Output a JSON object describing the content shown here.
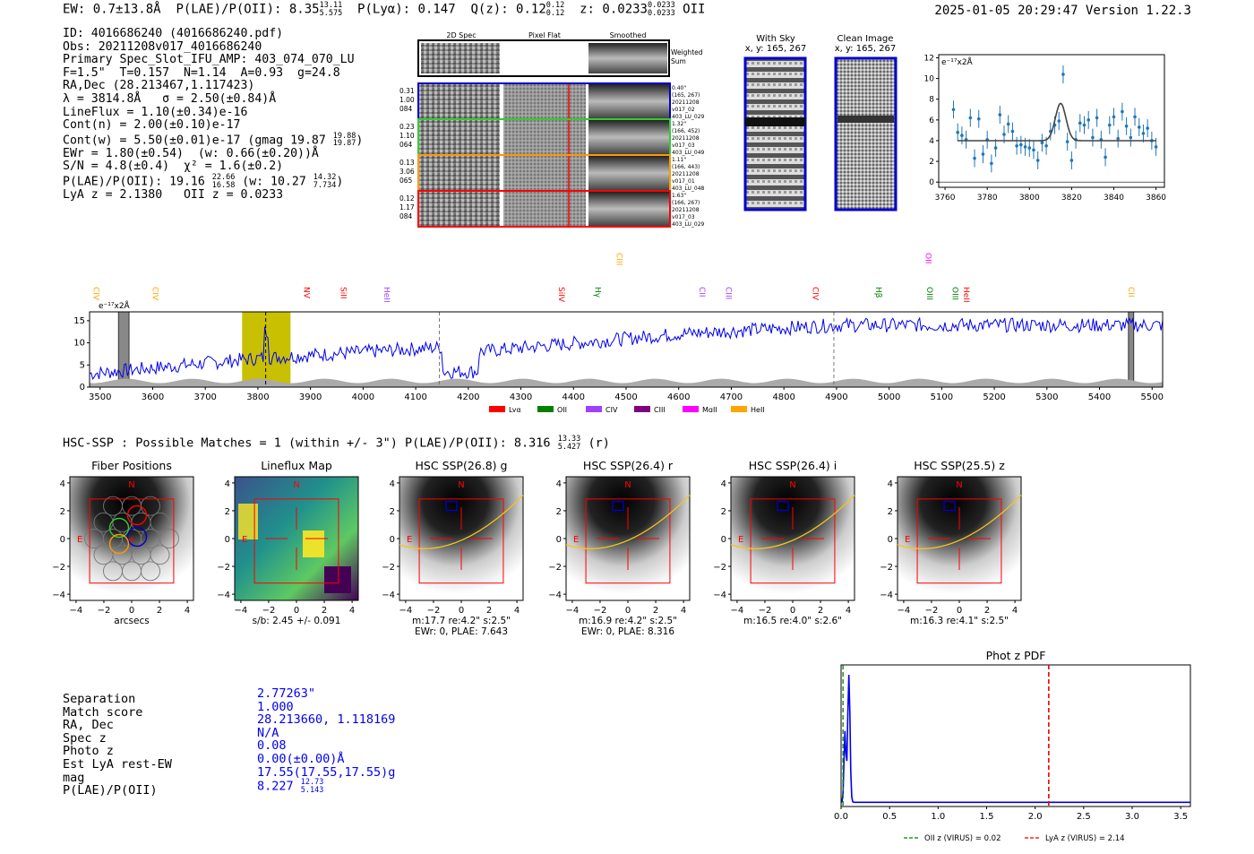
{
  "header": {
    "ew": "EW: 0.7±13.8Å",
    "plae_label": "P(LAE)/P(OII): 8.35",
    "plae_hi": "13.11",
    "plae_lo": "5.575",
    "plya": "P(Lyα): 0.147",
    "qz_label": "Q(z): 0.12",
    "qz_hi": "0.12",
    "qz_lo": "0.12",
    "z_label": "z: 0.0233",
    "z_hi": "0.0233",
    "z_lo": "0.0233",
    "z_line": "OII",
    "datetime": "2025-01-05 20:29:47",
    "version": "Version 1.22.3"
  },
  "info": {
    "id": "ID: 4016686240 (4016686240.pdf)",
    "obs": "Obs: 20211208v017_4016686240",
    "primary": "Primary Spec_Slot_IFU_AMP: 403_074_070_LU",
    "fline": "F=1.5\"  T=0.157  N=1.14  A=0.93  g=24.8",
    "radec": "RA,Dec (28.213467,1.117423)",
    "lambda": "λ = 3814.8Å   σ = 2.50(±0.84)Å",
    "lineflux": "LineFlux = 1.10(±0.34)e-16",
    "contn": "Cont(n) = 2.00(±0.10)e-17",
    "contw": "Cont(w) = 5.50(±0.01)e-17 (gmag 19.87",
    "contw_hi": "19.88",
    "contw_lo": "19.87",
    "ewr": "EWr = 1.80(±0.54)  (w: 0.66(±0.20))Å",
    "sn": "S/N = 4.8(±0.4)  χ² = 1.6(±0.2)",
    "plae": "P(LAE)/P(OII): 19.16",
    "plae_hi": "22.66",
    "plae_lo": "16.58",
    "plae_w": "(w: 10.27",
    "plae_w_hi": "14.32",
    "plae_w_lo": "7.734",
    "lya": "LyA z = 2.1380   OII z = 0.0233"
  },
  "cutouts": {
    "col_2d": "2D Spec",
    "col_flat": "Pixel Flat",
    "col_smooth": "Smoothed",
    "weighted": "Weighted",
    "sum": "Sum",
    "rows": [
      {
        "a": "0.31",
        "b": "1.00",
        "c": "084",
        "d1": "0.40\"",
        "d2": "(165, 267)",
        "d3": "20211208",
        "d4": "v017_02",
        "d5": "403_LU_029",
        "color": "#0000cc"
      },
      {
        "a": "0.23",
        "b": "1.10",
        "c": "064",
        "d1": "1.32\"",
        "d2": "(166, 452)",
        "d3": "20211208",
        "d4": "v017_03",
        "d5": "403_LU_049",
        "color": "#33cc33"
      },
      {
        "a": "0.13",
        "b": "3.06",
        "c": "065",
        "d1": "1.11\"",
        "d2": "(166, 443)",
        "d3": "20211208",
        "d4": "v017_01",
        "d5": "403_LU_048",
        "color": "#ff9900"
      },
      {
        "a": "0.12",
        "b": "1.17",
        "c": "084",
        "d1": "1.63\"",
        "d2": "(166, 267)",
        "d3": "20211208",
        "d4": "v017_03",
        "d5": "403_LU_029",
        "color": "#ff0000"
      }
    ],
    "with_sky": "With Sky",
    "with_sky_xy": "x, y: 165, 267",
    "clean": "Clean Image",
    "clean_xy": "x, y: 165, 267"
  },
  "spec_zoom": {
    "unit": "e⁻¹⁷x2Å",
    "xticks": [
      "3760",
      "3780",
      "3800",
      "3820",
      "3840",
      "3860"
    ],
    "yticks": [
      "0",
      "2",
      "4",
      "6",
      "8",
      "10",
      "12"
    ],
    "xlim": [
      3757,
      3864
    ],
    "ylim": [
      -0.5,
      12.3
    ],
    "continuum": 4.0,
    "gauss_center": 3814.8,
    "gauss_sigma": 2.5,
    "gauss_amp": 3.6,
    "points": [
      [
        3764,
        7.0
      ],
      [
        3766,
        4.8
      ],
      [
        3768,
        4.5
      ],
      [
        3770,
        4.1
      ],
      [
        3772,
        6.2
      ],
      [
        3774,
        2.3
      ],
      [
        3776,
        6.1
      ],
      [
        3778,
        2.7
      ],
      [
        3780,
        4.1
      ],
      [
        3782,
        1.8
      ],
      [
        3784,
        3.3
      ],
      [
        3786,
        6.5
      ],
      [
        3788,
        4.6
      ],
      [
        3790,
        5.6
      ],
      [
        3792,
        4.9
      ],
      [
        3794,
        3.5
      ],
      [
        3796,
        3.6
      ],
      [
        3798,
        3.4
      ],
      [
        3800,
        3.3
      ],
      [
        3802,
        3.1
      ],
      [
        3804,
        2.1
      ],
      [
        3806,
        3.8
      ],
      [
        3808,
        3.5
      ],
      [
        3810,
        4.9
      ],
      [
        3812,
        5.5
      ],
      [
        3814,
        5.9
      ],
      [
        3816,
        10.4
      ],
      [
        3818,
        3.9
      ],
      [
        3820,
        2.1
      ],
      [
        3822,
        4.1
      ],
      [
        3824,
        5.7
      ],
      [
        3826,
        5.5
      ],
      [
        3828,
        6.0
      ],
      [
        3830,
        4.3
      ],
      [
        3832,
        6.2
      ],
      [
        3834,
        4.1
      ],
      [
        3836,
        2.4
      ],
      [
        3838,
        5.5
      ],
      [
        3840,
        6.3
      ],
      [
        3842,
        4.2
      ],
      [
        3844,
        6.8
      ],
      [
        3846,
        5.4
      ],
      [
        3848,
        4.3
      ],
      [
        3850,
        6.3
      ],
      [
        3852,
        5.3
      ],
      [
        3854,
        4.7
      ],
      [
        3856,
        5.2
      ],
      [
        3858,
        4.0
      ],
      [
        3860,
        3.4
      ]
    ]
  },
  "full_spec": {
    "unit": "e⁻¹⁷x2Å",
    "xlim": [
      3480,
      5520
    ],
    "ylim": [
      0,
      17
    ],
    "xticks": [
      "3500",
      "3600",
      "3700",
      "3800",
      "3900",
      "4000",
      "4100",
      "4200",
      "4300",
      "4400",
      "4500",
      "4600",
      "4700",
      "4800",
      "4900",
      "5000",
      "5100",
      "5200",
      "5300",
      "5400",
      "5500"
    ],
    "yticks": [
      "0",
      "5",
      "10",
      "15"
    ],
    "lines": [
      {
        "name": "CIV",
        "wave": 3488,
        "color": "#ffa500",
        "row": 1
      },
      {
        "name": "CIV",
        "wave": 3600,
        "color": "#ffa500",
        "row": 1
      },
      {
        "name": "NV",
        "wave": 3888,
        "color": "#ff0000",
        "row": 1
      },
      {
        "name": "SiII",
        "wave": 3958,
        "color": "#ff0000",
        "row": 1
      },
      {
        "name": "HeII",
        "wave": 4040,
        "color": "#a040ff",
        "row": 1
      },
      {
        "name": "SiIV",
        "wave": 4372,
        "color": "#ff0000",
        "row": 1
      },
      {
        "name": "CIII",
        "wave": 4482,
        "color": "#ffa500",
        "row": 0
      },
      {
        "name": "Hγ",
        "wave": 4441,
        "color": "#008000",
        "row": 1
      },
      {
        "name": "CII",
        "wave": 4640,
        "color": "#a040ff",
        "row": 1
      },
      {
        "name": "CIII",
        "wave": 4690,
        "color": "#a040ff",
        "row": 1
      },
      {
        "name": "CIV",
        "wave": 4855,
        "color": "#ff0000",
        "row": 1
      },
      {
        "name": "Hβ",
        "wave": 4975,
        "color": "#008000",
        "row": 1
      },
      {
        "name": "OII",
        "wave": 5070,
        "color": "#ff00ff",
        "row": 0
      },
      {
        "name": "OIII",
        "wave": 5072,
        "color": "#008000",
        "row": 1
      },
      {
        "name": "OIII",
        "wave": 5121,
        "color": "#008000",
        "row": 1
      },
      {
        "name": "HeII",
        "wave": 5142,
        "color": "#ff0000",
        "row": 1
      },
      {
        "name": "CII",
        "wave": 5455,
        "color": "#ffa500",
        "row": 1
      }
    ],
    "legend": [
      {
        "name": "Lyα",
        "color": "#ff0000"
      },
      {
        "name": "OII",
        "color": "#008000"
      },
      {
        "name": "CIV",
        "color": "#a040ff"
      },
      {
        "name": "CIII",
        "color": "#800080"
      },
      {
        "name": "MgII",
        "color": "#ff00ff"
      },
      {
        "name": "HeII",
        "color": "#ffa500"
      }
    ],
    "highlight": [
      3770,
      3862
    ],
    "dashed": [
      3814.8,
      4145,
      4895
    ],
    "hatched": [
      [
        3535,
        3555
      ],
      [
        5455,
        5465
      ]
    ]
  },
  "hsc": {
    "title": "HSC-SSP : Possible Matches = 1 (within +/- 3\")  P(LAE)/P(OII): 8.316",
    "title_hi": "13.33",
    "title_lo": "5.427",
    "title_band": "(r)",
    "panels": [
      {
        "title": "Fiber Positions",
        "cap1": "arcsecs",
        "cap2": ""
      },
      {
        "title": "Lineflux Map",
        "cap1": "s/b: 2.45 +/- 0.091",
        "cap2": ""
      },
      {
        "title": "HSC SSP(26.8) g",
        "cap1": "m:17.7  re:4.2\"  s:2.5\"",
        "cap2": "EWr: 0, PLAE: 7.643"
      },
      {
        "title": "HSC SSP(26.4) r",
        "cap1": "m:16.9  re:4.2\"  s:2.5\"",
        "cap2": "EWr: 0, PLAE: 8.316"
      },
      {
        "title": "HSC SSP(26.4) i",
        "cap1": "m:16.5  re:4.0\"  s:2.6\"",
        "cap2": ""
      },
      {
        "title": "HSC SSP(25.5) z",
        "cap1": "m:16.3  re:4.1\"  s:2.5\"",
        "cap2": ""
      }
    ],
    "xticks": [
      "−4",
      "−2",
      "0",
      "2",
      "4"
    ],
    "yticks": [
      "4",
      "2",
      "0",
      "−2",
      "−4"
    ],
    "n_label": "N",
    "e_label": "E"
  },
  "match": {
    "labels": [
      "Separation",
      "Match score",
      "RA, Dec",
      "Spec z",
      "Photo z",
      "Est LyA rest-EW",
      "mag",
      "P(LAE)/P(OII)"
    ],
    "separation": "2.77263\"",
    "score": "1.000",
    "radec": "28.213660, 1.118169",
    "specz": "N/A",
    "photoz": "0.08",
    "ew": "0.00(±0.00)Å",
    "mag": "17.55(17.55,17.55)g",
    "plae": "8.227",
    "plae_hi": "12.73",
    "plae_lo": "5.143"
  },
  "photz": {
    "title": "Phot z PDF",
    "xticks": [
      "0.0",
      "0.5",
      "1.0",
      "1.5",
      "2.0",
      "2.5",
      "3.0",
      "3.5"
    ],
    "xlim": [
      0,
      3.6
    ],
    "oii_z": 0.02,
    "lya_z": 2.14,
    "oii_label": "OII z (VIRUS) = 0.02",
    "lya_label": "LyA z (VIRUS) = 2.14"
  }
}
